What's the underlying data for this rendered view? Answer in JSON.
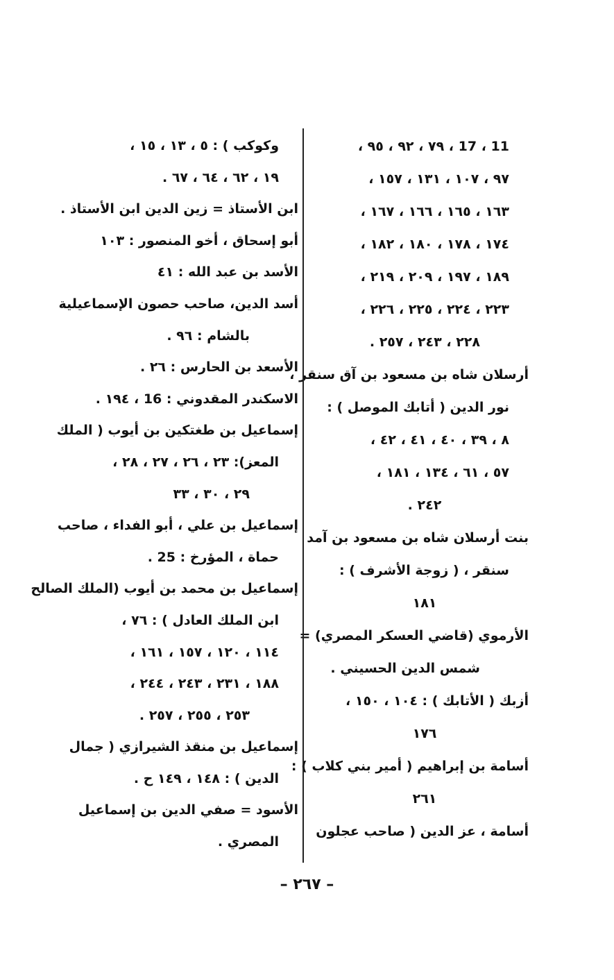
{
  "right_column": [
    "11 ، 17 ، ٧٩ ، ٩٢ ، ٩٥ ،",
    "٩٧ ، ١٠٧ ، ١٣١ ، ١٥٧ ،",
    "١٦٣ ، ١٦٥ ، ١٦٦ ، ١٦٧ ،",
    "١٧٤ ، ١٧٨ ، ١٨٠ ، ١٨٢ ،",
    "١٨٩ ، ١٩٧ ، ٢٠٩ ، ٢١٩ ،",
    "٢٢٣ ، ٢٢٤ ، ٢٢٥ ، ٢٢٦ ،",
    "٢٢٨ ، ٢٤٣ ، ٢٥٧ .",
    "أرسلان شاه بن مسعود بن آق سنقر ،",
    "نور الدين ( أتابك الموصل ) :",
    "٨ ، ٣٩ ، ٤٠ ، ٤١ ، ٤٢ ،",
    "٥٧ ، ٦١ ، ١٣٤ ، ١٨١ ،",
    "٢٤٢ .",
    "بنت أرسلان شاه بن مسعود بن آمد",
    "سنقر ، ( زوجة الأشرف ) :",
    "١٨١",
    "الأرموي (قاضي العسكر المصري) =",
    "شمس الدين الحسيني .",
    "أزبك ( الأتابك ) : ١٠٤ ، ١٥٠ ،",
    "١٧٦",
    "أسامة بن إبراهيم ( أمير بني كلاب ) :",
    "٢٦١",
    "أسامة ، عز الدين ( صاحب عجلون"
  ],
  "left_column": [
    "وكوكب ) : ٥ ، ١٣ ، ١٥ ،",
    "١٩ ، ٦٢ ، ٦٤ ، ٦٧ .",
    "ابن الأستاذ = زين الدين ابن الأستاذ .",
    "أبو إسحاق ، أخو المنصور : ١٠٣",
    "الأسد بن عبد الله : ٤١",
    "أسد الدين، صاحب حصون الإسماعيلية",
    "بالشام : ٩٦ .",
    "الأسعد بن الحارس : ٢٦ .",
    "الاسكندر المقدوني : 16 ، ١٩٤ .",
    "إسماعيل بن طغتكين بن أيوب ( الملك",
    "المعز): ٢٣ ، ٢٦ ، ٢٧ ، ٢٨ ،",
    "٢٩ ، ٣٠ ، ٣٣",
    "إسماعيل بن علي ، أبو الفداء ، صاحب",
    "حماة ، المؤرخ : 25 .",
    "إسماعيل بن محمد بن أيوب (الملك الصالح",
    "ابن الملك العادل ) : ٧٦ ،",
    "١١٤ ، ١٢٠ ، ١٥٧ ، ١٦١ ،",
    "١٨٨ ، ٢٣١ ، ٢٤٣ ، ٢٤٤ ،",
    "٢٥٣ ، ٢٥٥ ، ٢٥٧ .",
    "إسماعيل بن منقذ الشيرازي ( جمال",
    "الدين ) : ١٤٨ ، ١٤٩ ح .",
    "الأسود = صفي الدين بن إسماعيل",
    "المصري ."
  ],
  "page_number": "– ٢٦٧ –"
}
